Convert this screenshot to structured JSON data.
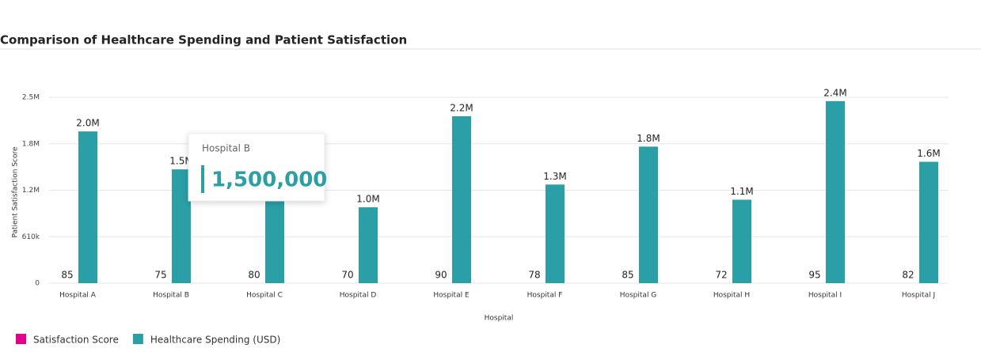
{
  "chart_data": {
    "type": "bar",
    "title": "Comparison of Healthcare Spending and Patient Satisfaction",
    "x_label": "Hospital",
    "y_label": "Patient Satisfaction Score",
    "categories": [
      "Hospital A",
      "Hospital B",
      "Hospital C",
      "Hospital D",
      "Hospital E",
      "Hospital F",
      "Hospital G",
      "Hospital H",
      "Hospital I",
      "Hospital J"
    ],
    "series": [
      {
        "name": "Satisfaction Score",
        "color": "#e3008c",
        "values": [
          85,
          75,
          80,
          70,
          90,
          78,
          85,
          72,
          95,
          82
        ]
      },
      {
        "name": "Healthcare Spending (USD)",
        "color": "#2a9fa6",
        "values": [
          2000000,
          1500000,
          1200000,
          1000000,
          2200000,
          1300000,
          1800000,
          1100000,
          2400000,
          1600000
        ],
        "value_labels": [
          "2.0M",
          "1.5M",
          "1.2M",
          "1.0M",
          "2.2M",
          "1.3M",
          "1.8M",
          "1.1M",
          "2.4M",
          "1.6M"
        ]
      }
    ],
    "ylim": [
      0,
      2450000
    ],
    "yticks": [
      0,
      {
        "value": 612500,
        "label": "610k"
      },
      {
        "value": 1225000,
        "label": "1.2M"
      },
      {
        "value": 1837500,
        "label": "1.8M"
      },
      {
        "value": 2450000,
        "label": "2.5M"
      }
    ],
    "grid": true,
    "legend": "bottom-left",
    "tooltip": {
      "title": "Hospital B",
      "value": "1,500,000"
    }
  }
}
